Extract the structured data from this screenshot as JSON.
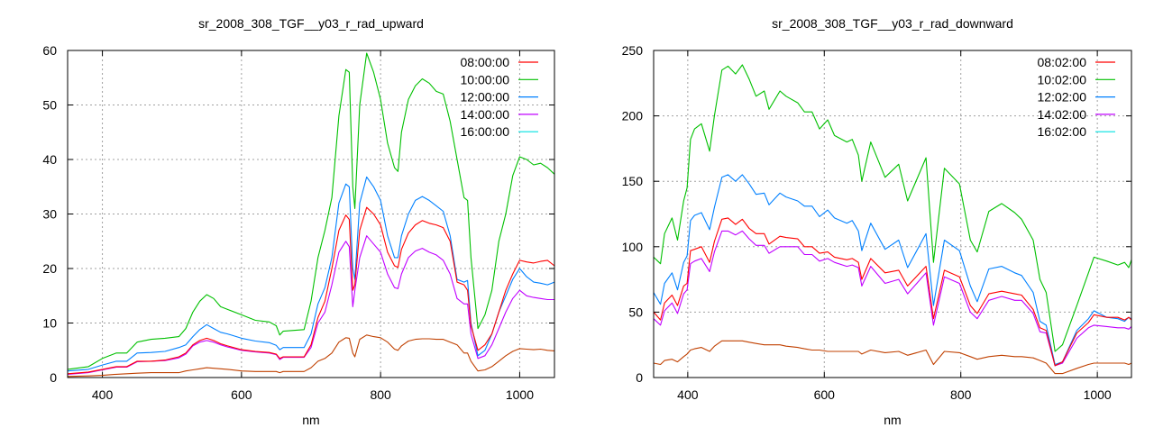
{
  "chart_data": [
    {
      "type": "line",
      "title": "sr_2008_308_TGF__y03_r_rad_upward",
      "xlabel": "nm",
      "ylabel": "",
      "xlim": [
        350,
        1050
      ],
      "ylim": [
        0,
        60
      ],
      "xticks": [
        400,
        600,
        800,
        1000
      ],
      "yticks": [
        0,
        10,
        20,
        30,
        40,
        50,
        60
      ],
      "grid": true,
      "legend_position": "top-right",
      "x": [
        350,
        380,
        400,
        420,
        435,
        450,
        470,
        490,
        510,
        520,
        530,
        540,
        550,
        560,
        570,
        580,
        600,
        620,
        640,
        650,
        655,
        660,
        690,
        700,
        710,
        720,
        730,
        740,
        750,
        755,
        760,
        763,
        770,
        780,
        790,
        800,
        810,
        820,
        825,
        830,
        840,
        850,
        860,
        870,
        880,
        890,
        900,
        910,
        920,
        925,
        930,
        940,
        950,
        960,
        970,
        980,
        990,
        1000,
        1010,
        1020,
        1030,
        1040,
        1050
      ],
      "series": [
        {
          "name": "08:00:00",
          "color": "#ff0000",
          "legend_color": "#ff0000",
          "values": [
            0.7,
            1,
            1.5,
            2,
            2,
            3,
            3,
            3.2,
            3.8,
            4.5,
            6,
            6.8,
            7.2,
            6.8,
            6.2,
            5.8,
            5.1,
            4.8,
            4.6,
            4.3,
            3.5,
            3.8,
            3.8,
            6,
            11,
            14,
            20,
            27,
            29.8,
            29,
            16,
            17,
            27,
            31.2,
            30,
            28,
            23,
            20.5,
            20.2,
            23.5,
            26.5,
            28,
            28.8,
            28.3,
            28,
            27.5,
            25,
            17.5,
            17,
            16,
            9.5,
            5,
            6,
            8,
            12,
            16,
            19,
            21.5,
            21.2,
            21,
            21.3,
            21.5,
            20.5
          ]
        },
        {
          "name": "10:00:00",
          "color": "#00c000",
          "legend_color": "#00c000",
          "values": [
            1.5,
            2,
            3.5,
            4.5,
            4.5,
            6.5,
            7,
            7.2,
            7.5,
            9,
            12,
            14,
            15.2,
            14.5,
            13,
            12.5,
            11.5,
            10.5,
            10.2,
            9.5,
            7.8,
            8.5,
            8.8,
            14,
            22,
            27,
            33,
            48,
            56.5,
            56,
            35,
            31,
            50,
            59.5,
            56,
            51,
            43,
            38.5,
            37.8,
            45,
            51,
            53.5,
            54.8,
            54,
            52.5,
            52,
            47,
            40,
            33,
            32.5,
            22,
            9,
            11.5,
            16,
            25,
            30,
            37,
            40.5,
            40,
            39,
            39.3,
            38.5,
            37.3
          ]
        },
        {
          "name": "12:00:00",
          "color": "#0080ff",
          "legend_color": "#0080ff",
          "values": [
            1.2,
            1.5,
            2.3,
            3,
            3,
            4.5,
            4.6,
            4.8,
            5.5,
            6,
            7.5,
            8.8,
            9.7,
            9,
            8.3,
            8,
            7.2,
            6.7,
            6.4,
            5.9,
            5.1,
            5.5,
            5.5,
            8,
            13.5,
            16.5,
            22,
            32,
            35.5,
            35,
            20,
            18,
            32,
            36.8,
            35,
            32.5,
            26,
            22,
            22,
            26,
            30,
            32.5,
            33.2,
            32.5,
            31.5,
            30.5,
            26,
            18,
            17.5,
            17.8,
            10,
            4,
            5,
            8,
            12,
            15,
            18,
            20,
            18.5,
            17.5,
            17.3,
            17,
            17.5
          ]
        },
        {
          "name": "14:00:00",
          "color": "#c000ff",
          "legend_color": "#c000ff",
          "values": [
            0.6,
            0.9,
            1.4,
            1.9,
            1.9,
            2.9,
            3,
            3.1,
            3.6,
            4.3,
            5.8,
            6.5,
            6.8,
            6.5,
            6,
            5.6,
            5,
            4.7,
            4.5,
            4.2,
            3.3,
            3.7,
            3.7,
            5.5,
            10,
            12,
            17,
            23,
            25,
            24,
            13,
            16,
            22,
            26,
            24.5,
            23,
            19,
            16.5,
            16.3,
            19,
            22,
            23.2,
            23.7,
            23,
            22.5,
            21.5,
            19,
            14.5,
            13.5,
            13.5,
            8,
            3.5,
            4,
            6,
            9,
            12,
            14.5,
            16,
            15,
            14.7,
            14.5,
            14.3,
            14.3
          ]
        },
        {
          "name": "16:00:00",
          "color": "#c04000",
          "legend_color": "#00e0e0",
          "values": [
            0.2,
            0.3,
            0.4,
            0.6,
            0.7,
            0.8,
            0.9,
            0.9,
            0.9,
            1.2,
            1.4,
            1.6,
            1.8,
            1.7,
            1.6,
            1.5,
            1.2,
            1.1,
            1.1,
            1.1,
            0.9,
            1.1,
            1.1,
            1.8,
            3,
            3.5,
            4.5,
            6.5,
            7.3,
            7.2,
            4.5,
            3.8,
            7,
            7.8,
            7.5,
            7.3,
            6.5,
            5.2,
            5,
            5.8,
            6.7,
            7,
            7.1,
            7.1,
            7,
            7,
            6.5,
            6,
            4.5,
            4.5,
            3,
            1.2,
            1.4,
            2,
            3,
            4,
            4.8,
            5.3,
            5.2,
            5.1,
            5.2,
            5,
            4.9
          ]
        }
      ]
    },
    {
      "type": "line",
      "title": "sr_2008_308_TGF__y03_r_rad_downward",
      "xlabel": "nm",
      "ylabel": "",
      "xlim": [
        350,
        1050
      ],
      "ylim": [
        0,
        250
      ],
      "xticks": [
        400,
        600,
        800,
        1000
      ],
      "yticks": [
        0,
        50,
        100,
        150,
        200,
        250
      ],
      "grid": true,
      "legend_position": "top-right",
      "x": [
        350,
        360,
        366,
        377,
        385,
        394,
        399,
        404,
        410,
        420,
        432,
        439,
        450,
        459,
        470,
        480,
        490,
        500,
        512,
        519,
        535,
        544,
        561,
        571,
        582,
        593,
        605,
        615,
        633,
        641,
        650,
        655,
        668,
        689,
        709,
        722,
        749,
        760,
        776,
        798,
        814,
        824,
        841,
        860,
        879,
        889,
        906,
        916,
        925,
        938,
        949,
        970,
        987,
        995,
        1014,
        1030,
        1040,
        1046,
        1050
      ],
      "series": [
        {
          "name": "08:02:00",
          "color": "#ff0000",
          "legend_color": "#ff0000",
          "values": [
            50,
            44,
            57,
            63,
            55,
            70,
            72,
            97,
            98,
            100,
            88,
            104,
            121,
            122,
            117,
            121,
            114,
            110,
            110,
            102,
            108,
            107,
            106,
            100,
            100,
            95,
            96,
            92,
            90,
            91,
            88,
            75,
            91,
            80,
            82,
            70,
            85,
            45,
            82,
            77,
            55,
            49,
            64,
            66,
            64,
            63,
            52,
            38,
            36,
            9,
            12,
            34,
            42,
            48,
            46,
            46,
            44,
            46,
            44
          ]
        },
        {
          "name": "10:02:00",
          "color": "#00c000",
          "legend_color": "#00c000",
          "values": [
            92,
            87,
            110,
            122,
            105,
            135,
            145,
            182,
            190,
            194,
            173,
            200,
            235,
            238,
            232,
            239,
            228,
            215,
            219,
            205,
            219,
            215,
            210,
            203,
            203,
            190,
            197,
            185,
            180,
            182,
            170,
            150,
            180,
            153,
            163,
            135,
            168,
            88,
            160,
            148,
            105,
            96,
            127,
            133,
            126,
            121,
            105,
            75,
            65,
            20,
            25,
            55,
            80,
            92,
            89,
            86,
            88,
            84,
            90
          ]
        },
        {
          "name": "12:02:00",
          "color": "#0080ff",
          "legend_color": "#0080ff",
          "values": [
            65,
            56,
            72,
            80,
            67,
            88,
            93,
            120,
            124,
            126,
            113,
            130,
            153,
            155,
            150,
            155,
            148,
            140,
            141,
            132,
            141,
            138,
            135,
            131,
            131,
            123,
            128,
            122,
            118,
            120,
            112,
            97,
            118,
            98,
            105,
            84,
            110,
            55,
            105,
            97,
            70,
            58,
            83,
            85,
            80,
            78,
            65,
            43,
            40,
            10,
            12,
            36,
            45,
            51,
            46,
            45,
            43,
            46,
            45
          ]
        },
        {
          "name": "14:02:00",
          "color": "#c000ff",
          "legend_color": "#c000ff",
          "values": [
            45,
            40,
            51,
            57,
            49,
            64,
            67,
            87,
            89,
            91,
            81,
            96,
            112,
            112,
            109,
            112,
            106,
            101,
            101,
            95,
            100,
            100,
            100,
            94,
            94,
            89,
            91,
            88,
            85,
            86,
            84,
            70,
            85,
            72,
            75,
            64,
            80,
            40,
            77,
            72,
            50,
            45,
            59,
            62,
            59,
            59,
            49,
            35,
            34,
            9,
            11,
            30,
            38,
            40,
            39,
            38,
            38,
            37,
            39
          ]
        },
        {
          "name": "16:02:00",
          "color": "#c04000",
          "legend_color": "#00e0e0",
          "values": [
            11,
            10,
            13,
            14,
            12,
            16,
            18,
            21,
            22,
            23,
            20,
            24,
            28,
            28,
            28,
            28,
            27,
            26,
            25,
            25,
            25,
            24,
            23,
            22,
            21,
            21,
            20,
            20,
            20,
            20,
            20,
            18,
            21,
            19,
            20,
            17,
            21,
            10,
            20,
            19,
            16,
            14,
            16,
            17,
            16,
            16,
            15,
            13,
            11,
            3,
            3,
            7,
            10,
            11,
            11,
            11,
            11,
            10,
            11
          ]
        }
      ]
    }
  ]
}
